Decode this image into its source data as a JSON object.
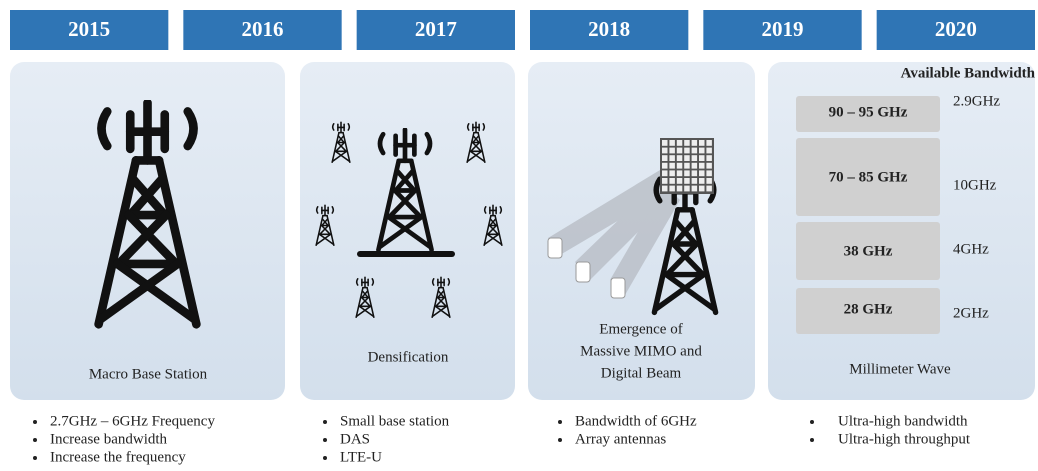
{
  "years": [
    "2015",
    "2016",
    "2017",
    "2018",
    "2019",
    "2020"
  ],
  "panels": [
    {
      "caption": [
        "Macro Base Station"
      ],
      "bullets": [
        "2.7GHz – 6GHz Frequency",
        "Increase bandwidth",
        "Increase the frequency"
      ]
    },
    {
      "caption": [
        "Densification"
      ],
      "bullets": [
        "Small base station",
        "DAS",
        "LTE-U"
      ]
    },
    {
      "caption": [
        "Emergence of",
        "Massive MIMO and",
        "Digital Beam"
      ],
      "bullets": [
        "Bandwidth of 6GHz",
        "Array antennas"
      ]
    },
    {
      "caption": [
        "Millimeter Wave"
      ],
      "bullets": [
        "Ultra-high bandwidth",
        "Ultra-high throughput"
      ]
    }
  ],
  "bandwidth_header": "Available  Bandwidth",
  "bands": [
    {
      "label": "90 – 95 GHz",
      "bandwidth": "2.9GHz"
    },
    {
      "label": "70 – 85 GHz",
      "bandwidth": "10GHz"
    },
    {
      "label": "38 GHz",
      "bandwidth": "4GHz"
    },
    {
      "label": "28 GHz",
      "bandwidth": "2GHz"
    }
  ]
}
